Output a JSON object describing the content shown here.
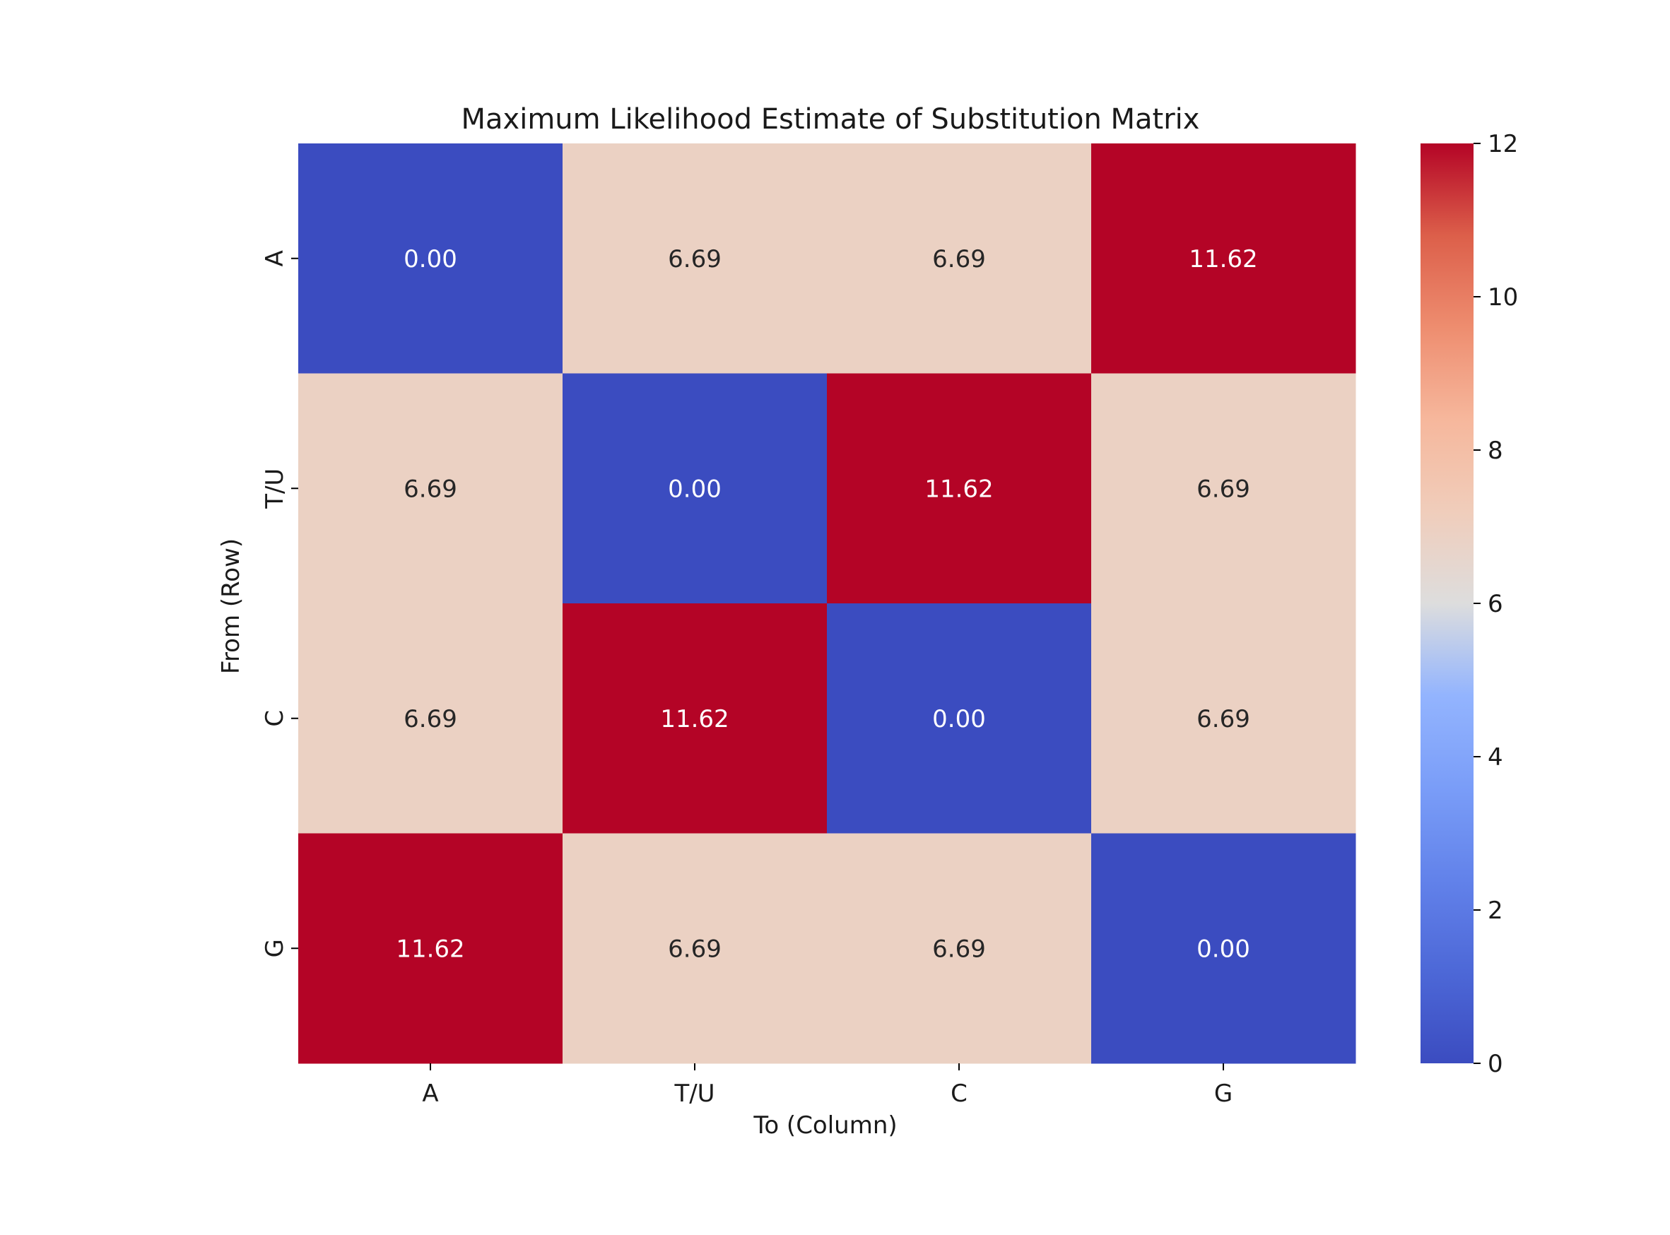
{
  "chart_data": {
    "type": "heatmap",
    "title": "Maximum Likelihood Estimate of Substitution Matrix",
    "xlabel": "To (Column)",
    "ylabel": "From (Row)",
    "x_categories": [
      "A",
      "T/U",
      "C",
      "G"
    ],
    "y_categories": [
      "A",
      "T/U",
      "C",
      "G"
    ],
    "values": [
      [
        0.0,
        6.69,
        6.69,
        11.62
      ],
      [
        6.69,
        0.0,
        11.62,
        6.69
      ],
      [
        6.69,
        11.62,
        0.0,
        6.69
      ],
      [
        11.62,
        6.69,
        6.69,
        0.0
      ]
    ],
    "value_format": "0.00",
    "colormap": "coolwarm",
    "colors": {
      "low": "#3b4cc0",
      "high": "#b40426",
      "mid": "#dddddd"
    },
    "colorbar": {
      "range": [
        0,
        12
      ],
      "ticks": [
        0,
        2,
        4,
        6,
        8,
        10,
        12
      ]
    }
  }
}
